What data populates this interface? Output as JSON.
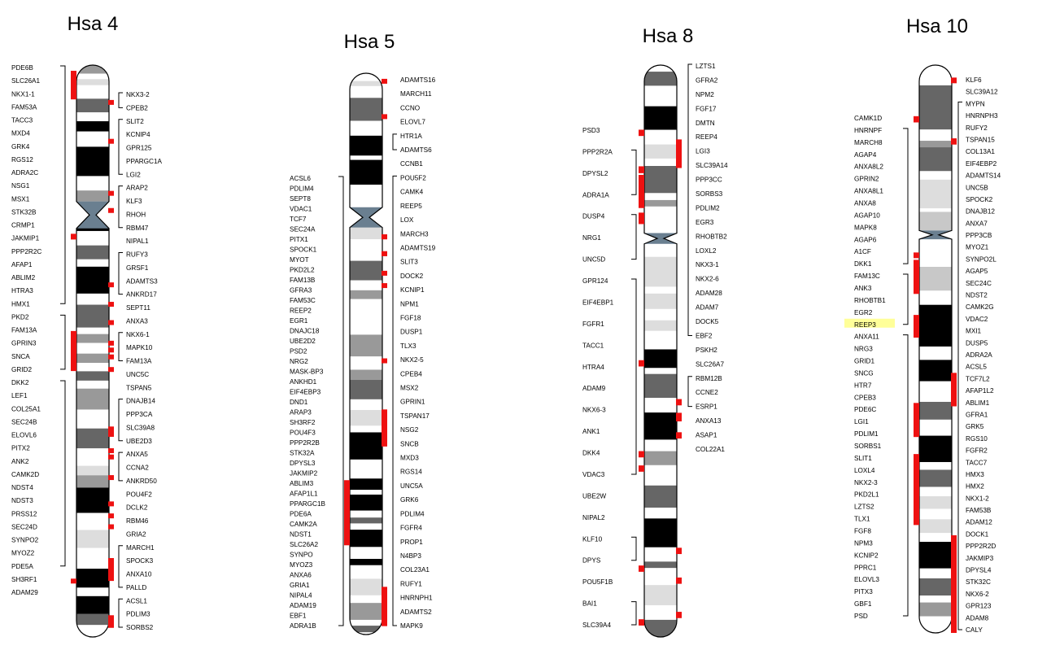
{
  "chromosomes": [
    {
      "title": "Hsa 4",
      "bands": [
        [
          "g",
          0,
          0.0149
        ],
        [
          "w",
          0.0149,
          0.0246
        ],
        [
          "l",
          0.0246,
          0.0351
        ],
        [
          "w",
          0.0351,
          0.0588
        ],
        [
          "m",
          0.0588,
          0.0826
        ],
        [
          "w",
          0.0826,
          0.0982
        ],
        [
          "d",
          0.0982,
          0.116
        ],
        [
          "w",
          0.116,
          0.1428
        ],
        [
          "d",
          0.1428,
          0.194
        ],
        [
          "w",
          0.194,
          0.2193
        ],
        [
          "g",
          0.2193,
          0.2385
        ],
        [
          "w",
          0.2385,
          0.25
        ],
        [
          "d",
          0.25,
          0.2901
        ],
        [
          "w",
          0.2901,
          0.3153
        ],
        [
          "m",
          0.3153,
          0.3395
        ],
        [
          "w",
          0.3395,
          0.3525
        ],
        [
          "d",
          0.3525,
          0.3995
        ],
        [
          "w",
          0.3995,
          0.419
        ],
        [
          "m",
          0.419,
          0.4589
        ],
        [
          "w",
          0.4589,
          0.4703
        ],
        [
          "g",
          0.4703,
          0.4858
        ],
        [
          "w",
          0.4858,
          0.5045
        ],
        [
          "g",
          0.5045,
          0.5207
        ],
        [
          "w",
          0.5207,
          0.5354
        ],
        [
          "m",
          0.5354,
          0.5517
        ],
        [
          "w",
          0.5517,
          0.5657
        ],
        [
          "g",
          0.5657,
          0.6023
        ],
        [
          "w",
          0.6023,
          0.6354
        ],
        [
          "m",
          0.6354,
          0.6701
        ],
        [
          "w",
          0.6701,
          0.7007
        ],
        [
          "l",
          0.7007,
          0.7174
        ],
        [
          "g",
          0.7174,
          0.7389
        ],
        [
          "d",
          0.7389,
          0.783
        ],
        [
          "w",
          0.783,
          0.8129
        ],
        [
          "l",
          0.8129,
          0.8443
        ],
        [
          "w",
          0.8443,
          0.8806
        ],
        [
          "d",
          0.8806,
          0.9136
        ],
        [
          "w",
          0.9136,
          0.9286
        ],
        [
          "d",
          0.9286,
          0.9595
        ],
        [
          "m",
          0.9595,
          0.9789
        ],
        [
          "w",
          0.9789,
          1
        ]
      ],
      "left_labels": [
        "PDE6B",
        "SLC26A1",
        "NKX1-1",
        "FAM53A",
        "TACC3",
        "MXD4",
        "GRK4",
        "RGS12",
        "ADRA2C",
        "NSG1",
        "MSX1",
        "STK32B",
        "CRMP1",
        "JAKMIP1",
        "PPP2R2C",
        "AFAP1",
        "ABLIM2",
        "HTRA3",
        "HMX1",
        "PKD2",
        "FAM13A",
        "GPRIN3",
        "SNCA",
        "GRID2",
        "DKK2",
        "LEF1",
        "COL25A1",
        "SEC24B",
        "ELOVL6",
        "PITX2",
        "ANK2",
        "CAMK2D",
        "NDST4",
        "NDST3",
        "PRSS12",
        "SEC24D",
        "SYNPO2",
        "MYOZ2",
        "PDE5A",
        "SH3RF1",
        "ADAM29"
      ],
      "right_labels": [
        "NKX3-2",
        "CPEB2",
        "SLIT2",
        "KCNIP4",
        "GPR125",
        "PPARGC1A",
        "LGI2",
        "ARAP2",
        "KLF3",
        "RHOH",
        "RBM47",
        "NIPAL1",
        "RUFY3",
        "GRSF1",
        "ADAMTS3",
        "ANKRD17",
        "SEPT11",
        "ANXA3",
        "NKX6-1",
        "MAPK10",
        "FAM13A",
        "UNC5C",
        "TSPAN5",
        "DNAJB14",
        "PPP3CA",
        "SLC39A8",
        "UBE2D3",
        "ANXA5",
        "CCNA2",
        "ANKRD50",
        "POU4F2",
        "DCLK2",
        "RBM46",
        "GRIA2",
        "MARCH1",
        "SPOCK3",
        "ANXA10",
        "PALLD",
        "ACSL1",
        "PDLIM3",
        "SORBS2"
      ]
    },
    {
      "title": "Hsa 5",
      "bands": [
        [
          "w",
          0,
          0.0139
        ],
        [
          "l",
          0.0139,
          0.0229
        ],
        [
          "w",
          0.0229,
          0.0439
        ],
        [
          "m",
          0.0439,
          0.0848
        ],
        [
          "w",
          0.0848,
          0.1113
        ],
        [
          "d",
          0.1113,
          0.1467
        ],
        [
          "w",
          0.1467,
          0.1544
        ],
        [
          "d",
          0.1544,
          0.1985
        ],
        [
          "w",
          0.1985,
          0.2525
        ],
        [
          "l",
          0.2525,
          0.2957
        ],
        [
          "w",
          0.2957,
          0.3342
        ],
        [
          "m",
          0.3342,
          0.3689
        ],
        [
          "w",
          0.3689,
          0.3867
        ],
        [
          "g",
          0.3867,
          0.4023
        ],
        [
          "w",
          0.4023,
          0.4392
        ],
        [
          "w",
          0.4392,
          0.4658
        ],
        [
          "g",
          0.4658,
          0.5045
        ],
        [
          "w",
          0.5045,
          0.5282
        ],
        [
          "g",
          0.5282,
          0.5464
        ],
        [
          "m",
          0.5464,
          0.5809
        ],
        [
          "w",
          0.5809,
          0.6
        ],
        [
          "l",
          0.6,
          0.6279
        ],
        [
          "w",
          0.6279,
          0.6398
        ],
        [
          "d",
          0.6398,
          0.6881
        ],
        [
          "w",
          0.6881,
          0.7221
        ],
        [
          "d",
          0.7221,
          0.7421
        ],
        [
          "w",
          0.7421,
          0.7507
        ],
        [
          "d",
          0.7507,
          0.7791
        ],
        [
          "w",
          0.7791,
          0.7916
        ],
        [
          "m",
          0.7916,
          0.802
        ],
        [
          "w",
          0.802,
          0.8132
        ],
        [
          "d",
          0.8132,
          0.8439
        ],
        [
          "w",
          0.8439,
          0.8652
        ],
        [
          "d",
          0.8652,
          0.8764
        ],
        [
          "w",
          0.8764,
          0.9006
        ],
        [
          "l",
          0.9006,
          0.9301
        ],
        [
          "w",
          0.9301,
          0.9437
        ],
        [
          "g",
          0.9437,
          0.9738
        ],
        [
          "w",
          0.9738,
          0.9842
        ],
        [
          "m",
          0.9842,
          0.9959
        ],
        [
          "w",
          0.9959,
          1
        ]
      ],
      "left_labels": [
        "ACSL6",
        "PDLIM4",
        "SEPT8",
        "VDAC1",
        "TCF7",
        "SEC24A",
        "PITX1",
        "SPOCK1",
        "MYOT",
        "PKD2L2",
        "FAM13B",
        "GFRA3",
        "FAM53C",
        "REEP2",
        "EGR1",
        "DNAJC18",
        "UBE2D2",
        "PSD2",
        "NRG2",
        "MASK-BP3",
        "ANKHD1",
        "EIF4EBP3",
        "DND1",
        "ARAP3",
        "SH3RF2",
        "POU4F3",
        "PPP2R2B",
        "STK32A",
        "DPYSL3",
        "JAKMIP2",
        "ABLIM3",
        "AFAP1L1",
        "PPARGC1B",
        "PDE6A",
        "CAMK2A",
        "NDST1",
        "SLC26A2",
        "SYNPO",
        "MYOZ3",
        "ANXA6",
        "GRIA1",
        "NIPAL4",
        "ADAM19",
        "EBF1",
        "ADRA1B"
      ],
      "right_labels": [
        "ADAMTS16",
        "MARCH11",
        "CCNO",
        "ELOVL7",
        "HTR1A",
        "ADAMTS6",
        "CCNB1",
        "POU5F2",
        "CAMK4",
        "REEP5",
        "LOX",
        "MARCH3",
        "ADAMTS19",
        "SLIT3",
        "DOCK2",
        "KCNIP1",
        "NPM1",
        "FGF18",
        "DUSP1",
        "TLX3",
        "NKX2-5",
        "CPEB4",
        "MSX2",
        "GPRIN1",
        "TSPAN17",
        "NSG2",
        "SNCB",
        "MXD3",
        "RGS14",
        "UNC5A",
        "GRK6",
        "PDLIM4",
        "FGFR4",
        "PROP1",
        "N4BP3",
        "COL23A1",
        "RUFY1",
        "HNRNPH1",
        "ADAMTS2",
        "MAPK9"
      ]
    },
    {
      "title": "Hsa 8",
      "bands": [
        [
          "w",
          0,
          0.0115
        ],
        [
          "m",
          0.0115,
          0.0361
        ],
        [
          "w",
          0.0361,
          0.072
        ],
        [
          "d",
          0.072,
          0.1131
        ],
        [
          "w",
          0.1131,
          0.1388
        ],
        [
          "l",
          0.1388,
          0.1634
        ],
        [
          "w",
          0.1634,
          0.1764
        ],
        [
          "m",
          0.1764,
          0.2237
        ],
        [
          "w",
          0.2237,
          0.236
        ],
        [
          "g",
          0.236,
          0.2472
        ],
        [
          "w",
          0.2472,
          0.2714
        ],
        [
          "w",
          0.2714,
          0.3105
        ],
        [
          "w",
          0.3105,
          0.3353
        ],
        [
          "l",
          0.3353,
          0.3875
        ],
        [
          "w",
          0.3875,
          0.3995
        ],
        [
          "l",
          0.3995,
          0.4264
        ],
        [
          "w",
          0.4264,
          0.4463
        ],
        [
          "l",
          0.4463,
          0.4647
        ],
        [
          "w",
          0.4647,
          0.4971
        ],
        [
          "d",
          0.4971,
          0.5295
        ],
        [
          "w",
          0.5295,
          0.5401
        ],
        [
          "m",
          0.5401,
          0.5818
        ],
        [
          "w",
          0.5818,
          0.6075
        ],
        [
          "d",
          0.6075,
          0.6549
        ],
        [
          "w",
          0.6549,
          0.6751
        ],
        [
          "g",
          0.6751,
          0.6995
        ],
        [
          "w",
          0.6995,
          0.7351
        ],
        [
          "m",
          0.7351,
          0.7738
        ],
        [
          "w",
          0.7738,
          0.7928
        ],
        [
          "d",
          0.7928,
          0.8431
        ],
        [
          "w",
          0.8431,
          0.8682
        ],
        [
          "m",
          0.8682,
          0.8793
        ],
        [
          "w",
          0.8793,
          0.9092
        ],
        [
          "l",
          0.9092,
          0.9445
        ],
        [
          "w",
          0.9445,
          0.97
        ],
        [
          "m",
          0.97,
          1
        ]
      ],
      "left_labels": [
        "PSD3",
        "PPP2R2A",
        "DPYSL2",
        "ADRA1A",
        "DUSP4",
        "NRG1",
        "UNC5D",
        "GPR124",
        "EIF4EBP1",
        "FGFR1",
        "TACC1",
        "HTRA4",
        "ADAM9",
        "NKX6-3",
        "ANK1",
        "DKK4",
        "VDAC3",
        "UBE2W",
        "NIPAL2",
        "KLF10",
        "DPYS",
        "POU5F1B",
        "BAI1",
        "SLC39A4"
      ],
      "right_labels": [
        "LZTS1",
        "GFRA2",
        "NPM2",
        "FGF17",
        "DMTN",
        "REEP4",
        "LGI3",
        "SLC39A14",
        "PPP3CC",
        "SORBS3",
        "PDLIM2",
        "EGR3",
        "RHOBTB2",
        "LOXL2",
        "NKX3-1",
        "NKX2-6",
        "ADAM28",
        "ADAM7",
        "DOCK5",
        "EBF2",
        "PSKH2",
        "SLC26A7",
        "RBM12B",
        "CCNE2",
        "ESRP1",
        "ANXA13",
        "ASAP1",
        "COL22A1"
      ]
    },
    {
      "title": "Hsa 10",
      "bands": [
        [
          "w",
          0,
          0.0357
        ],
        [
          "m",
          0.0357,
          0.1134
        ],
        [
          "w",
          0.1134,
          0.1333
        ],
        [
          "g",
          0.1333,
          0.1448
        ],
        [
          "m",
          0.1448,
          0.1866
        ],
        [
          "w",
          0.1866,
          0.2018
        ],
        [
          "l",
          0.2018,
          0.2523
        ],
        [
          "w",
          0.2523,
          0.2585
        ],
        [
          "f",
          0.2585,
          0.2913
        ],
        [
          "w",
          0.2913,
          0.3067
        ],
        [
          "w",
          0.3067,
          0.3392
        ],
        [
          "w",
          0.3392,
          0.3553
        ],
        [
          "f",
          0.3553,
          0.3972
        ],
        [
          "w",
          0.3972,
          0.4222
        ],
        [
          "d",
          0.4222,
          0.4956
        ],
        [
          "w",
          0.4956,
          0.5192
        ],
        [
          "d",
          0.5192,
          0.5567
        ],
        [
          "w",
          0.5567,
          0.5931
        ],
        [
          "m",
          0.5931,
          0.6243
        ],
        [
          "w",
          0.6243,
          0.6527
        ],
        [
          "d",
          0.6527,
          0.6991
        ],
        [
          "w",
          0.6991,
          0.7127
        ],
        [
          "m",
          0.7127,
          0.7428
        ],
        [
          "w",
          0.7428,
          0.7593
        ],
        [
          "l",
          0.7593,
          0.7814
        ],
        [
          "w",
          0.7814,
          0.7999
        ],
        [
          "l",
          0.7999,
          0.8239
        ],
        [
          "w",
          0.8239,
          0.8396
        ],
        [
          "d",
          0.8396,
          0.8863
        ],
        [
          "w",
          0.8863,
          0.9039
        ],
        [
          "m",
          0.9039,
          0.9341
        ],
        [
          "w",
          0.9341,
          0.9464
        ],
        [
          "g",
          0.9464,
          0.9707
        ],
        [
          "w",
          0.9707,
          1
        ]
      ],
      "left_labels": [
        "CAMK1D",
        "HNRNPF",
        "MARCH8",
        "AGAP4",
        "ANXA8L2",
        "GPRIN2",
        "ANXA8L1",
        "ANXA8",
        "AGAP10",
        "MAPK8",
        "AGAP6",
        "A1CF",
        "DKK1",
        "FAM13C",
        "ANK3",
        "RHOBTB1",
        "EGR2",
        "REEP3",
        "ANXA11",
        "NRG3",
        "GRID1",
        "SNCG",
        "HTR7",
        "CPEB3",
        "PDE6C",
        "LGI1",
        "PDLIM1",
        "SORBS1",
        "SLIT1",
        "LOXL4",
        "NKX2-3",
        "PKD2L1",
        "LZTS2",
        "TLX1",
        "FGF8",
        "NPM3",
        "KCNIP2",
        "PPRC1",
        "ELOVL3",
        "PITX3",
        "GBF1",
        "PSD"
      ],
      "right_labels": [
        "KLF6",
        "SLC39A12",
        "MYPN",
        "HNRNPH3",
        "RUFY2",
        "TSPAN15",
        "COL13A1",
        "EIF4EBP2",
        "ADAMTS14",
        "UNC5B",
        "SPOCK2",
        "DNAJB12",
        "ANXA7",
        "PPP3CB",
        "MYOZ1",
        "SYNPO2L",
        "AGAP5",
        "SEC24C",
        "NDST2",
        "CAMK2G",
        "VDAC2",
        "MXI1",
        "DUSP5",
        "ADRA2A",
        "ACSL5",
        "TCF7L2",
        "AFAP1L2",
        "ABLIM1",
        "GFRA1",
        "GRK5",
        "RGS10",
        "FGFR2",
        "TACC7",
        "HMX3",
        "HMX2",
        "NKX1-2",
        "FAM53B",
        "ADAM12",
        "DOCK1",
        "PPP2R2D",
        "JAKMIP3",
        "DPYSL4",
        "STK32C",
        "NKX6-2",
        "GPR123",
        "ADAM8",
        "CALY"
      ],
      "highlighted": [
        "REEP3"
      ]
    }
  ],
  "colors": {
    "marker": "#ee1111",
    "centromere": "#6a7f90",
    "highlight": "#ffff99",
    "band_d": "#000000",
    "band_m": "#666666",
    "band_g": "#999999",
    "band_l": "#dddddd",
    "band_f": "#c8c8c8",
    "band_w": "#ffffff"
  }
}
